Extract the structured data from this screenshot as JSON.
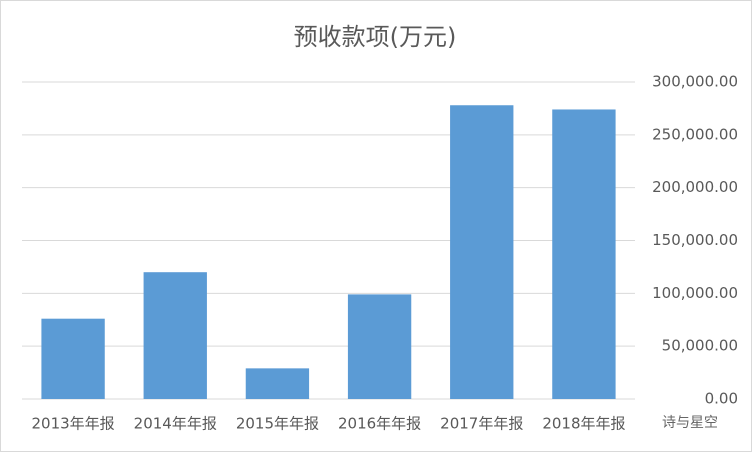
{
  "chart_data": {
    "type": "bar",
    "title": "预收款项(万元)",
    "categories": [
      "2013年年报",
      "2014年年报",
      "2015年年报",
      "2016年年报",
      "2017年年报",
      "2018年年报"
    ],
    "values": [
      76000,
      120000,
      29000,
      99000,
      278000,
      274000
    ],
    "color": "#5b9bd5",
    "ylim": [
      0,
      300000
    ],
    "yticks": [
      {
        "value": 0,
        "label": "0.00"
      },
      {
        "value": 50000,
        "label": "50,000.00"
      },
      {
        "value": 100000,
        "label": "100,000.00"
      },
      {
        "value": 150000,
        "label": "150,000.00"
      },
      {
        "value": 200000,
        "label": "200,000.00"
      },
      {
        "value": 250000,
        "label": "250,000.00"
      },
      {
        "value": 300000,
        "label": "300,000.00"
      }
    ],
    "grid": true,
    "watermark": "诗与星空"
  }
}
